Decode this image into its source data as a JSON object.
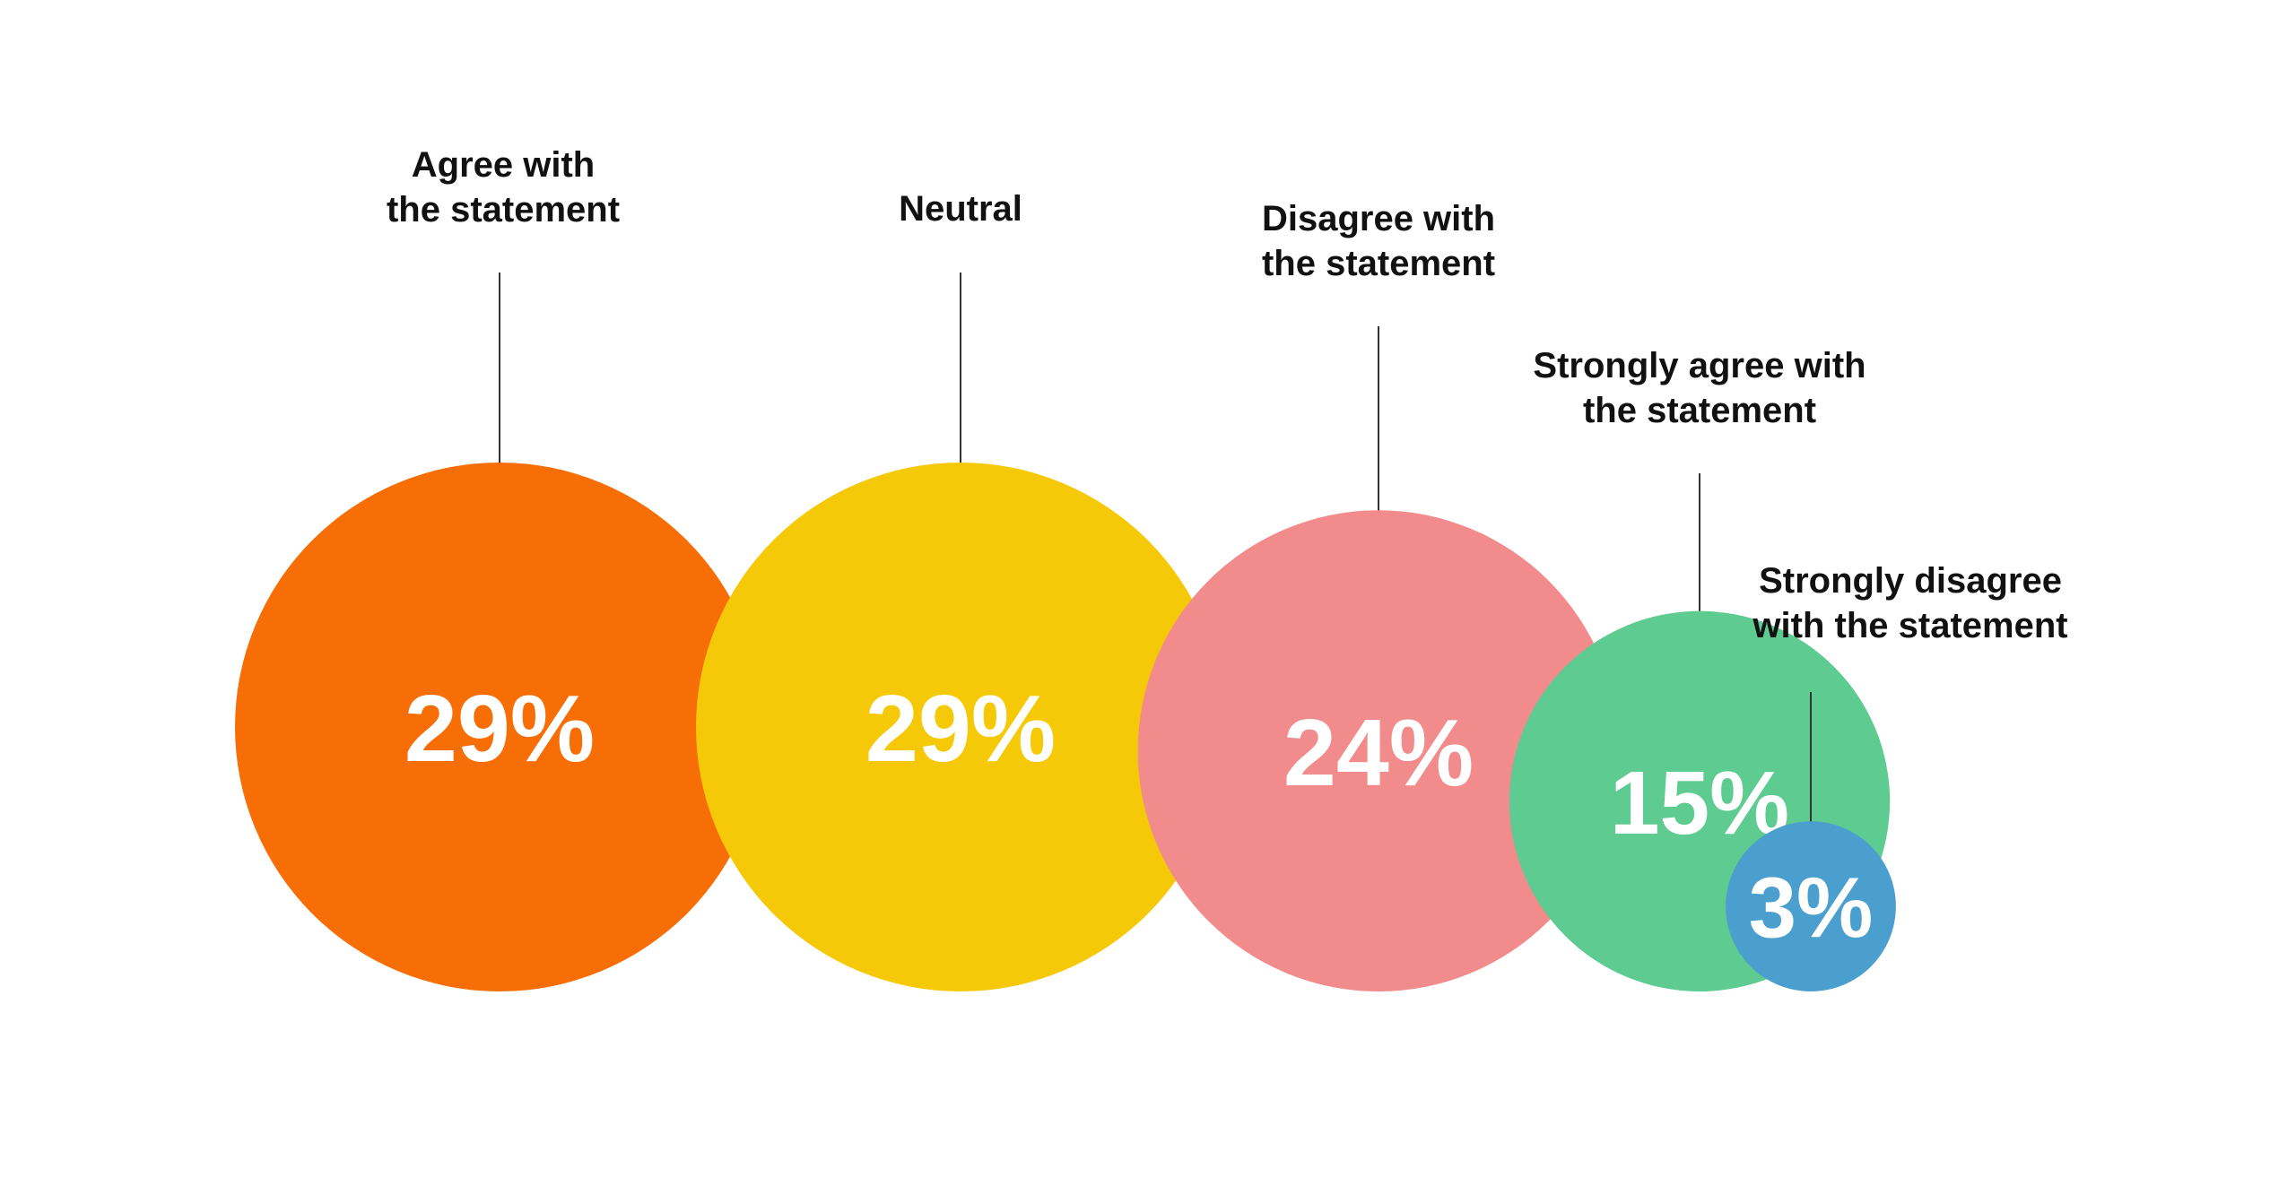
{
  "chart_data": {
    "type": "bubble",
    "title": "",
    "series": [
      {
        "values": [
          29,
          29,
          24,
          15,
          3
        ],
        "labels": [
          "29%",
          "29%",
          "24%",
          "15%",
          "3%"
        ]
      }
    ],
    "categories": [
      [
        "Agree with",
        "the statement"
      ],
      [
        "Neutral"
      ],
      [
        "Disagree with",
        "the statement"
      ],
      [
        "Strongly agree with",
        "the statement"
      ],
      [
        "Strongly disagree",
        "with the statement"
      ]
    ],
    "colors": [
      "#f76d06",
      "#f6c908",
      "#f28b8c",
      "#5ecb91",
      "#4a9fcf"
    ]
  }
}
